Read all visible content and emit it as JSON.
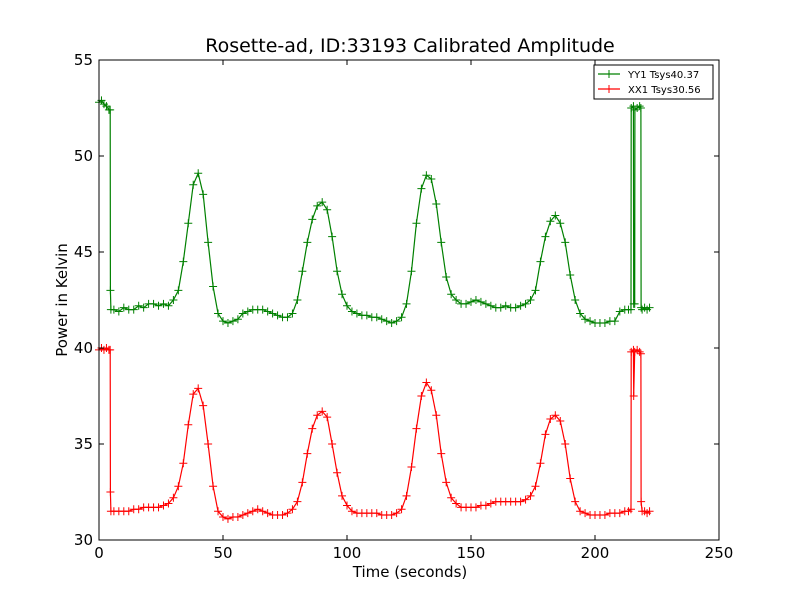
{
  "chart_data": {
    "type": "line",
    "title": "Rosette-ad, ID:33193 Calibrated Amplitude",
    "xlabel": "Time (seconds)",
    "ylabel": "Power in Kelvin",
    "xlim": [
      0,
      250
    ],
    "ylim": [
      30,
      55
    ],
    "xticks": [
      0,
      50,
      100,
      150,
      200,
      250
    ],
    "yticks": [
      30,
      35,
      40,
      45,
      50,
      55
    ],
    "grid": false,
    "legend_position": "top-right",
    "marker": "plus",
    "series": [
      {
        "name": "YY1 Tsys40.37",
        "color": "#008000",
        "points": [
          [
            0,
            52.8
          ],
          [
            1,
            52.9
          ],
          [
            2,
            52.7
          ],
          [
            3,
            52.6
          ],
          [
            4,
            52.4
          ],
          [
            4.5,
            52.4
          ],
          [
            4.6,
            43
          ],
          [
            4.8,
            42
          ],
          [
            6,
            42
          ],
          [
            8,
            41.9
          ],
          [
            10,
            42.1
          ],
          [
            12,
            42.0
          ],
          [
            14,
            42.0
          ],
          [
            16,
            42.2
          ],
          [
            18,
            42.1
          ],
          [
            20,
            42.3
          ],
          [
            22,
            42.3
          ],
          [
            24,
            42.2
          ],
          [
            26,
            42.3
          ],
          [
            28,
            42.2
          ],
          [
            30,
            42.5
          ],
          [
            32,
            43.0
          ],
          [
            34,
            44.5
          ],
          [
            36,
            46.5
          ],
          [
            38,
            48.5
          ],
          [
            40,
            49.1
          ],
          [
            42,
            48.0
          ],
          [
            44,
            45.5
          ],
          [
            46,
            43.2
          ],
          [
            48,
            41.8
          ],
          [
            50,
            41.4
          ],
          [
            52,
            41.3
          ],
          [
            54,
            41.4
          ],
          [
            56,
            41.5
          ],
          [
            58,
            41.8
          ],
          [
            60,
            41.9
          ],
          [
            62,
            42.0
          ],
          [
            64,
            42.0
          ],
          [
            66,
            42.0
          ],
          [
            68,
            41.9
          ],
          [
            70,
            41.8
          ],
          [
            72,
            41.7
          ],
          [
            74,
            41.6
          ],
          [
            76,
            41.6
          ],
          [
            78,
            41.8
          ],
          [
            80,
            42.5
          ],
          [
            82,
            44.0
          ],
          [
            84,
            45.5
          ],
          [
            86,
            46.7
          ],
          [
            88,
            47.4
          ],
          [
            90,
            47.6
          ],
          [
            92,
            47.2
          ],
          [
            94,
            45.8
          ],
          [
            96,
            44.0
          ],
          [
            98,
            42.8
          ],
          [
            100,
            42.2
          ],
          [
            102,
            41.9
          ],
          [
            104,
            41.8
          ],
          [
            106,
            41.7
          ],
          [
            108,
            41.7
          ],
          [
            110,
            41.6
          ],
          [
            112,
            41.6
          ],
          [
            114,
            41.5
          ],
          [
            116,
            41.4
          ],
          [
            118,
            41.3
          ],
          [
            120,
            41.4
          ],
          [
            122,
            41.6
          ],
          [
            124,
            42.3
          ],
          [
            126,
            44.0
          ],
          [
            128,
            46.5
          ],
          [
            130,
            48.3
          ],
          [
            132,
            49.0
          ],
          [
            134,
            48.8
          ],
          [
            136,
            47.5
          ],
          [
            138,
            45.5
          ],
          [
            140,
            43.7
          ],
          [
            142,
            42.8
          ],
          [
            144,
            42.5
          ],
          [
            146,
            42.3
          ],
          [
            148,
            42.3
          ],
          [
            150,
            42.4
          ],
          [
            152,
            42.5
          ],
          [
            154,
            42.4
          ],
          [
            156,
            42.3
          ],
          [
            158,
            42.2
          ],
          [
            160,
            42.1
          ],
          [
            162,
            42.1
          ],
          [
            164,
            42.2
          ],
          [
            166,
            42.1
          ],
          [
            168,
            42.1
          ],
          [
            170,
            42.2
          ],
          [
            172,
            42.3
          ],
          [
            174,
            42.5
          ],
          [
            176,
            43.0
          ],
          [
            178,
            44.5
          ],
          [
            180,
            45.8
          ],
          [
            182,
            46.6
          ],
          [
            184,
            46.9
          ],
          [
            186,
            46.5
          ],
          [
            188,
            45.5
          ],
          [
            190,
            43.8
          ],
          [
            192,
            42.5
          ],
          [
            194,
            41.8
          ],
          [
            196,
            41.5
          ],
          [
            198,
            41.4
          ],
          [
            200,
            41.3
          ],
          [
            202,
            41.3
          ],
          [
            204,
            41.3
          ],
          [
            206,
            41.4
          ],
          [
            208,
            41.4
          ],
          [
            210,
            41.9
          ],
          [
            212,
            42.0
          ],
          [
            213.5,
            42.0
          ],
          [
            214.5,
            42.0
          ],
          [
            214.6,
            52.5
          ],
          [
            215.5,
            52.6
          ],
          [
            215.6,
            42.3
          ],
          [
            216,
            42.3
          ],
          [
            216.1,
            52.4
          ],
          [
            217,
            52.5
          ],
          [
            218,
            52.6
          ],
          [
            218.5,
            52.5
          ],
          [
            218.6,
            42.1
          ],
          [
            219,
            42.0
          ],
          [
            220,
            42.1
          ],
          [
            221,
            42.0
          ],
          [
            222,
            42.1
          ]
        ]
      },
      {
        "name": "XX1 Tsys30.56",
        "color": "#ff0000",
        "points": [
          [
            0,
            39.9
          ],
          [
            1,
            40.0
          ],
          [
            2,
            39.9
          ],
          [
            3,
            40.0
          ],
          [
            4,
            39.9
          ],
          [
            4.5,
            39.9
          ],
          [
            4.6,
            32.5
          ],
          [
            4.8,
            31.5
          ],
          [
            6,
            31.5
          ],
          [
            8,
            31.5
          ],
          [
            10,
            31.5
          ],
          [
            12,
            31.5
          ],
          [
            14,
            31.6
          ],
          [
            16,
            31.6
          ],
          [
            18,
            31.7
          ],
          [
            20,
            31.7
          ],
          [
            22,
            31.7
          ],
          [
            24,
            31.7
          ],
          [
            26,
            31.8
          ],
          [
            28,
            31.9
          ],
          [
            30,
            32.2
          ],
          [
            32,
            32.8
          ],
          [
            34,
            34.0
          ],
          [
            36,
            36.0
          ],
          [
            38,
            37.6
          ],
          [
            40,
            37.9
          ],
          [
            42,
            37.0
          ],
          [
            44,
            35.0
          ],
          [
            46,
            32.8
          ],
          [
            48,
            31.5
          ],
          [
            50,
            31.2
          ],
          [
            52,
            31.1
          ],
          [
            54,
            31.2
          ],
          [
            56,
            31.2
          ],
          [
            58,
            31.3
          ],
          [
            60,
            31.4
          ],
          [
            62,
            31.5
          ],
          [
            64,
            31.6
          ],
          [
            66,
            31.5
          ],
          [
            68,
            31.4
          ],
          [
            70,
            31.3
          ],
          [
            72,
            31.3
          ],
          [
            74,
            31.3
          ],
          [
            76,
            31.4
          ],
          [
            78,
            31.6
          ],
          [
            80,
            32.0
          ],
          [
            82,
            33.0
          ],
          [
            84,
            34.5
          ],
          [
            86,
            35.8
          ],
          [
            88,
            36.5
          ],
          [
            90,
            36.7
          ],
          [
            92,
            36.4
          ],
          [
            94,
            35.0
          ],
          [
            96,
            33.5
          ],
          [
            98,
            32.3
          ],
          [
            100,
            31.8
          ],
          [
            102,
            31.5
          ],
          [
            104,
            31.4
          ],
          [
            106,
            31.4
          ],
          [
            108,
            31.4
          ],
          [
            110,
            31.4
          ],
          [
            112,
            31.4
          ],
          [
            114,
            31.3
          ],
          [
            116,
            31.3
          ],
          [
            118,
            31.3
          ],
          [
            120,
            31.4
          ],
          [
            122,
            31.6
          ],
          [
            124,
            32.3
          ],
          [
            126,
            33.8
          ],
          [
            128,
            35.8
          ],
          [
            130,
            37.5
          ],
          [
            132,
            38.2
          ],
          [
            134,
            37.8
          ],
          [
            136,
            36.5
          ],
          [
            138,
            34.5
          ],
          [
            140,
            33.0
          ],
          [
            142,
            32.2
          ],
          [
            144,
            31.9
          ],
          [
            146,
            31.7
          ],
          [
            148,
            31.7
          ],
          [
            150,
            31.7
          ],
          [
            152,
            31.7
          ],
          [
            154,
            31.8
          ],
          [
            156,
            31.8
          ],
          [
            158,
            31.9
          ],
          [
            160,
            32.0
          ],
          [
            162,
            32.0
          ],
          [
            164,
            32.0
          ],
          [
            166,
            32.0
          ],
          [
            168,
            32.0
          ],
          [
            170,
            32.0
          ],
          [
            172,
            32.1
          ],
          [
            174,
            32.3
          ],
          [
            176,
            32.8
          ],
          [
            178,
            34.0
          ],
          [
            180,
            35.5
          ],
          [
            182,
            36.3
          ],
          [
            184,
            36.5
          ],
          [
            186,
            36.2
          ],
          [
            188,
            35.0
          ],
          [
            190,
            33.2
          ],
          [
            192,
            32.0
          ],
          [
            194,
            31.5
          ],
          [
            196,
            31.4
          ],
          [
            198,
            31.3
          ],
          [
            200,
            31.3
          ],
          [
            202,
            31.3
          ],
          [
            204,
            31.3
          ],
          [
            206,
            31.4
          ],
          [
            208,
            31.4
          ],
          [
            210,
            31.4
          ],
          [
            212,
            31.5
          ],
          [
            213.5,
            31.5
          ],
          [
            214.5,
            31.6
          ],
          [
            214.6,
            39.8
          ],
          [
            215.5,
            39.9
          ],
          [
            215.6,
            37.5
          ],
          [
            216,
            39.8
          ],
          [
            217,
            39.9
          ],
          [
            218,
            39.8
          ],
          [
            218.5,
            39.7
          ],
          [
            218.6,
            32.0
          ],
          [
            219,
            31.5
          ],
          [
            220,
            31.5
          ],
          [
            221,
            31.4
          ],
          [
            222,
            31.5
          ]
        ]
      }
    ]
  }
}
